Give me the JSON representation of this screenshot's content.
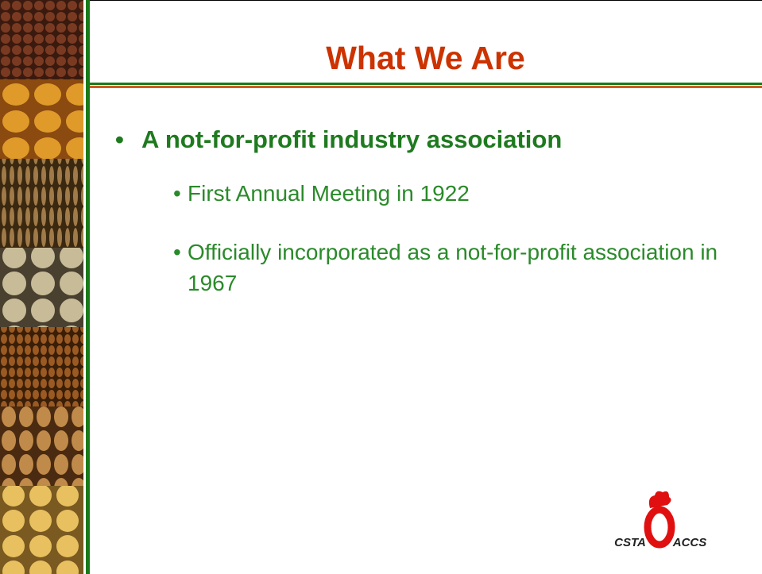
{
  "slide": {
    "title": "What We Are",
    "bullets": [
      {
        "text": "A not-for-profit industry association",
        "subbullets": [
          "First Annual Meeting in 1922",
          "Officially incorporated as a not-for-profit association in 1967"
        ]
      }
    ],
    "logo": {
      "left": "CSTA",
      "right": "ACCS"
    }
  }
}
